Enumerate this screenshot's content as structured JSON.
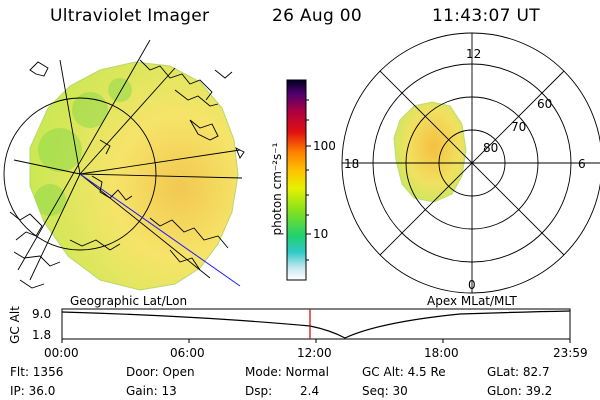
{
  "header": {
    "title": "Ultraviolet Imager",
    "date": "26 Aug 00",
    "time": "11:43:07 UT"
  },
  "colorbar": {
    "unit_label": "photon cm⁻²s⁻¹",
    "tick_labels": [
      "100",
      "10"
    ]
  },
  "polar_plot": {
    "mlt_labels": [
      "12",
      "18",
      "6",
      "0"
    ],
    "mlat_labels": [
      "60",
      "70",
      "80"
    ]
  },
  "panel_labels": {
    "left": "Geographic Lat/Lon",
    "right": "Apex MLat/MLT"
  },
  "altitude_strip": {
    "axis_label": "GC Alt",
    "y_ticks": [
      "9.0",
      "1.8"
    ],
    "x_ticks": [
      "00:00",
      "06:00",
      "12:00",
      "18:00",
      "23:59"
    ],
    "current_time_color": "#d00000"
  },
  "footer": {
    "flt": "Flt: 1356",
    "ip": "IP: 36.0",
    "door": "Door: Open",
    "gain": "Gain: 13",
    "mode": "Mode: Normal",
    "dsp_label": "Dsp:",
    "dsp_value": "2.4",
    "gc_alt": "GC Alt: 4.5 Re",
    "seq": "Seq: 30",
    "glat": "GLat: 82.7",
    "glon": "GLon: 39.2"
  }
}
